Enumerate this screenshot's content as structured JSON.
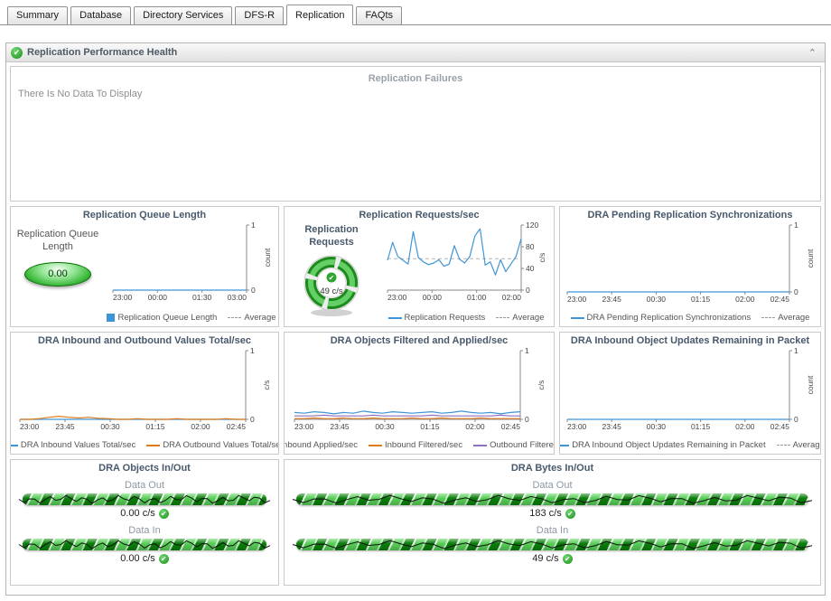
{
  "tabs": [
    {
      "label": "Summary"
    },
    {
      "label": "Database"
    },
    {
      "label": "Directory Services"
    },
    {
      "label": "DFS-R"
    },
    {
      "label": "Replication"
    },
    {
      "label": "FAQts"
    }
  ],
  "active_tab": "Replication",
  "section": {
    "title": "Replication Performance Health"
  },
  "failures": {
    "title": "Replication Failures",
    "message": "There Is No Data To Display"
  },
  "queue_gauge": {
    "label": "Replication Queue Length",
    "value": "0.00"
  },
  "requests_gauge": {
    "label": "Replication Requests",
    "value": "49 c/s"
  },
  "flows": [
    {
      "title": "DRA Objects In/Out",
      "rows": [
        {
          "label": "Data Out",
          "value": "0.00 c/s"
        },
        {
          "label": "Data In",
          "value": "0.00 c/s"
        }
      ]
    },
    {
      "title": "DRA Bytes In/Out",
      "rows": [
        {
          "label": "Data Out",
          "value": "183 c/s"
        },
        {
          "label": "Data In",
          "value": "49 c/s"
        }
      ]
    }
  ],
  "colors": {
    "accent_blue": "#3e95d6",
    "accent_orange": "#e07b1a",
    "accent_purple": "#8f6fc0",
    "gauge_green": "#2fa42f"
  },
  "chart_data": [
    {
      "type": "line",
      "title": "Replication Queue Length",
      "y_unit": "count",
      "y_range": [
        0,
        1
      ],
      "y_ticks": [
        0,
        1
      ],
      "x_ticks": [
        "23:00",
        "00:00",
        "01:30",
        "03:00"
      ],
      "series": [
        {
          "name": "Replication Queue Length",
          "color": "#3e95d6",
          "values": [
            0,
            0,
            0,
            0,
            0,
            0,
            0,
            0,
            0,
            0,
            0,
            0,
            0,
            0,
            0,
            0
          ]
        }
      ],
      "average": 0,
      "legend": [
        {
          "label": "Replication Queue Length",
          "swatch": "square",
          "color": "#3e95d6"
        },
        {
          "label": "Average",
          "swatch": "dashed",
          "color": "#999999"
        }
      ]
    },
    {
      "type": "line",
      "title": "Replication Requests/sec",
      "y_unit": "c/s",
      "y_range": [
        0,
        120
      ],
      "y_ticks": [
        0,
        40,
        80,
        120
      ],
      "x_ticks": [
        "23:00",
        "00:00",
        "01:00",
        "02:00"
      ],
      "series": [
        {
          "name": "Replication Requests",
          "color": "#3e95d6",
          "values": [
            55,
            88,
            62,
            55,
            48,
            108,
            60,
            52,
            47,
            50,
            56,
            44,
            48,
            82,
            57,
            50,
            62,
            100,
            113,
            46,
            52,
            28,
            56,
            34,
            48,
            62,
            95
          ]
        }
      ],
      "average": 58,
      "legend": [
        {
          "label": "Replication Requests",
          "swatch": "line",
          "color": "#3e95d6"
        },
        {
          "label": "Average",
          "swatch": "dashed",
          "color": "#999999"
        }
      ]
    },
    {
      "type": "line",
      "title": "DRA Pending Replication Synchronizations",
      "y_unit": "count",
      "y_range": [
        0,
        1
      ],
      "y_ticks": [
        0,
        1
      ],
      "x_ticks": [
        "23:00",
        "23:45",
        "00:30",
        "01:15",
        "02:00",
        "02:45"
      ],
      "series": [
        {
          "name": "DRA Pending Replication Synchronizations",
          "color": "#3e95d6",
          "values": [
            0,
            0,
            0,
            0,
            0,
            0,
            0,
            0,
            0,
            0,
            0,
            0,
            0,
            0,
            0,
            0,
            0,
            0,
            0,
            0
          ]
        }
      ],
      "average": 0,
      "legend": [
        {
          "label": "DRA Pending Replication Synchronizations",
          "swatch": "line",
          "color": "#3e95d6"
        },
        {
          "label": "Average",
          "swatch": "dashed",
          "color": "#999999"
        }
      ]
    },
    {
      "type": "line",
      "title": "DRA Inbound and Outbound Values Total/sec",
      "y_unit": "c/s",
      "y_range": [
        0,
        1
      ],
      "y_ticks": [
        0,
        1
      ],
      "x_ticks": [
        "23:00",
        "23:45",
        "00:30",
        "01:15",
        "02:00",
        "02:45"
      ],
      "series": [
        {
          "name": "DRA Inbound Values Total/sec",
          "color": "#3e95d6",
          "values": [
            0,
            0,
            0,
            0,
            0,
            0,
            0,
            0,
            0,
            0,
            0,
            0,
            0,
            0,
            0,
            0,
            0,
            0,
            0,
            0,
            0,
            0,
            0,
            0
          ]
        },
        {
          "name": "DRA Outbound Values Total/sec",
          "color": "#e07b1a",
          "values": [
            0,
            0,
            0.01,
            0.03,
            0.045,
            0.03,
            0.02,
            0.03,
            0.015,
            0.01,
            0,
            0,
            0.01,
            0,
            0,
            0,
            0.01,
            0,
            0,
            0,
            0,
            0.01,
            0,
            0
          ]
        }
      ],
      "legend": [
        {
          "label": "DRA Inbound Values Total/sec",
          "swatch": "line",
          "color": "#3e95d6"
        },
        {
          "label": "DRA Outbound Values Total/sec",
          "swatch": "line",
          "color": "#e07b1a"
        }
      ]
    },
    {
      "type": "line",
      "title": "DRA Objects Filtered and Applied/sec",
      "y_unit": "c/s",
      "y_range": [
        0,
        1
      ],
      "y_ticks": [
        0,
        1
      ],
      "x_ticks": [
        "23:00",
        "23:45",
        "00:30",
        "01:15",
        "02:00",
        "02:45"
      ],
      "series": [
        {
          "name": "Inbound Applied/sec",
          "color": "#3e95d6",
          "values": [
            0.1,
            0.09,
            0.11,
            0.1,
            0.08,
            0.1,
            0.09,
            0.12,
            0.1,
            0.09,
            0.11,
            0.1,
            0.09,
            0.1,
            0.11,
            0.09,
            0.1,
            0.12,
            0.1,
            0.09,
            0.1,
            0.08,
            0.1,
            0.11
          ]
        },
        {
          "name": "Inbound Filtered/sec",
          "color": "#e07b1a",
          "values": [
            0.01,
            0.01,
            0.02,
            0.01,
            0.01,
            0.02,
            0.01,
            0.01,
            0.02,
            0.01,
            0.01,
            0.01,
            0.02,
            0.01,
            0.01,
            0.02,
            0.01,
            0.01,
            0.01,
            0.02,
            0.01,
            0.01,
            0.01,
            0.01
          ]
        },
        {
          "name": "Outbound Filtered/sec",
          "color": "#8f6fc0",
          "values": [
            0.05,
            0.05,
            0.05,
            0.06,
            0.05,
            0.05,
            0.05,
            0.05,
            0.06,
            0.05,
            0.05,
            0.05,
            0.05,
            0.05,
            0.06,
            0.05,
            0.05,
            0.05,
            0.05,
            0.05,
            0.05,
            0.06,
            0.05,
            0.05
          ]
        }
      ],
      "legend": [
        {
          "label": "Inbound Applied/sec",
          "swatch": "line",
          "color": "#3e95d6"
        },
        {
          "label": "Inbound Filtered/sec",
          "swatch": "line",
          "color": "#e07b1a"
        },
        {
          "label": "Outbound Filtered/sec",
          "swatch": "line",
          "color": "#8f6fc0"
        }
      ]
    },
    {
      "type": "line",
      "title": "DRA Inbound Object Updates Remaining in Packet",
      "y_unit": "count",
      "y_range": [
        0,
        1
      ],
      "y_ticks": [
        0,
        1
      ],
      "x_ticks": [
        "23:00",
        "23:45",
        "00:30",
        "01:15",
        "02:00",
        "02:45"
      ],
      "series": [
        {
          "name": "DRA Inbound Object Updates Remaining in Packet",
          "color": "#3e95d6",
          "values": [
            0,
            0,
            0,
            0,
            0,
            0,
            0,
            0,
            0,
            0,
            0,
            0,
            0,
            0,
            0,
            0,
            0,
            0,
            0,
            0
          ]
        }
      ],
      "average": 0,
      "legend": [
        {
          "label": "DRA Inbound Object Updates Remaining in Packet",
          "swatch": "line",
          "color": "#3e95d6"
        },
        {
          "label": "Average",
          "swatch": "dashed",
          "color": "#999999"
        }
      ]
    }
  ]
}
